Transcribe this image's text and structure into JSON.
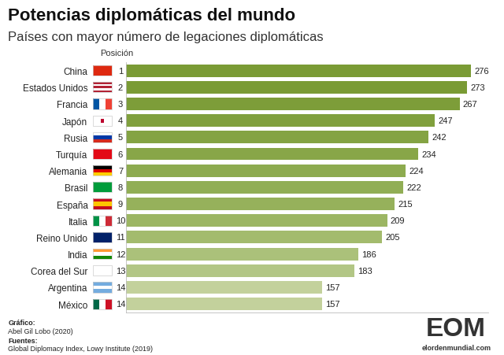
{
  "chart_data": {
    "type": "bar",
    "orientation": "horizontal",
    "title": "Potencias diplomáticas del mundo",
    "subtitle": "Países con mayor número de legaciones diplomáticas",
    "positions_label": "Posición",
    "categories": [
      "China",
      "Estados Unidos",
      "Francia",
      "Japón",
      "Rusia",
      "Turquía",
      "Alemania",
      "Brasil",
      "España",
      "Italia",
      "Reino Unido",
      "India",
      "Corea del Sur",
      "Argentina",
      "México"
    ],
    "positions": [
      1,
      2,
      3,
      4,
      5,
      6,
      7,
      8,
      9,
      10,
      11,
      12,
      13,
      14,
      14
    ],
    "values": [
      276,
      273,
      267,
      247,
      242,
      234,
      224,
      222,
      215,
      209,
      205,
      186,
      183,
      157,
      157
    ],
    "colors": [
      "#7a9b35",
      "#7a9b35",
      "#7d9d39",
      "#80a03d",
      "#84a343",
      "#88a648",
      "#8dab4f",
      "#91ae55",
      "#96b15b",
      "#9cb663",
      "#a3bb6d",
      "#abc17a",
      "#b2c685",
      "#c3d19c",
      "#c3d19c"
    ],
    "xlim": [
      0,
      290
    ],
    "xticks": [],
    "grid": false,
    "data_labels": true,
    "tick_labels": "y"
  },
  "credits": [
    {
      "label": "Gráfico:",
      "text": "Abel Gil Lobo (2020)"
    },
    {
      "label": "Fuentes:",
      "text": "Global Diplomacy Index, Lowy Institute (2019)"
    }
  ],
  "logo": {
    "text": "EOM",
    "url": "elordenmundial.com"
  }
}
